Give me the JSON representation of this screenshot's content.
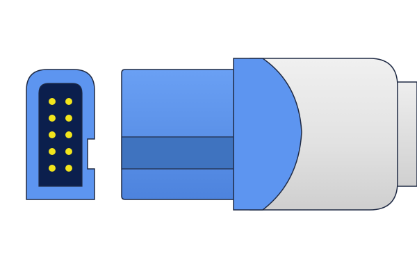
{
  "illustration": {
    "subject": "connector-illustration",
    "colors": {
      "outline": "#1f2a44",
      "blue_light": "#5d95f0",
      "blue_mid": "#4f86e3",
      "blue_band": "#3f73bf",
      "face_dark": "#0b1f4d",
      "pin": "#f2e51c",
      "cable_light": "#e9e9e9",
      "cable_mid": "#d6d6d6",
      "cable_shadow": "#c9c9c9"
    },
    "pin_grid": {
      "rows": 5,
      "cols": 2
    }
  }
}
